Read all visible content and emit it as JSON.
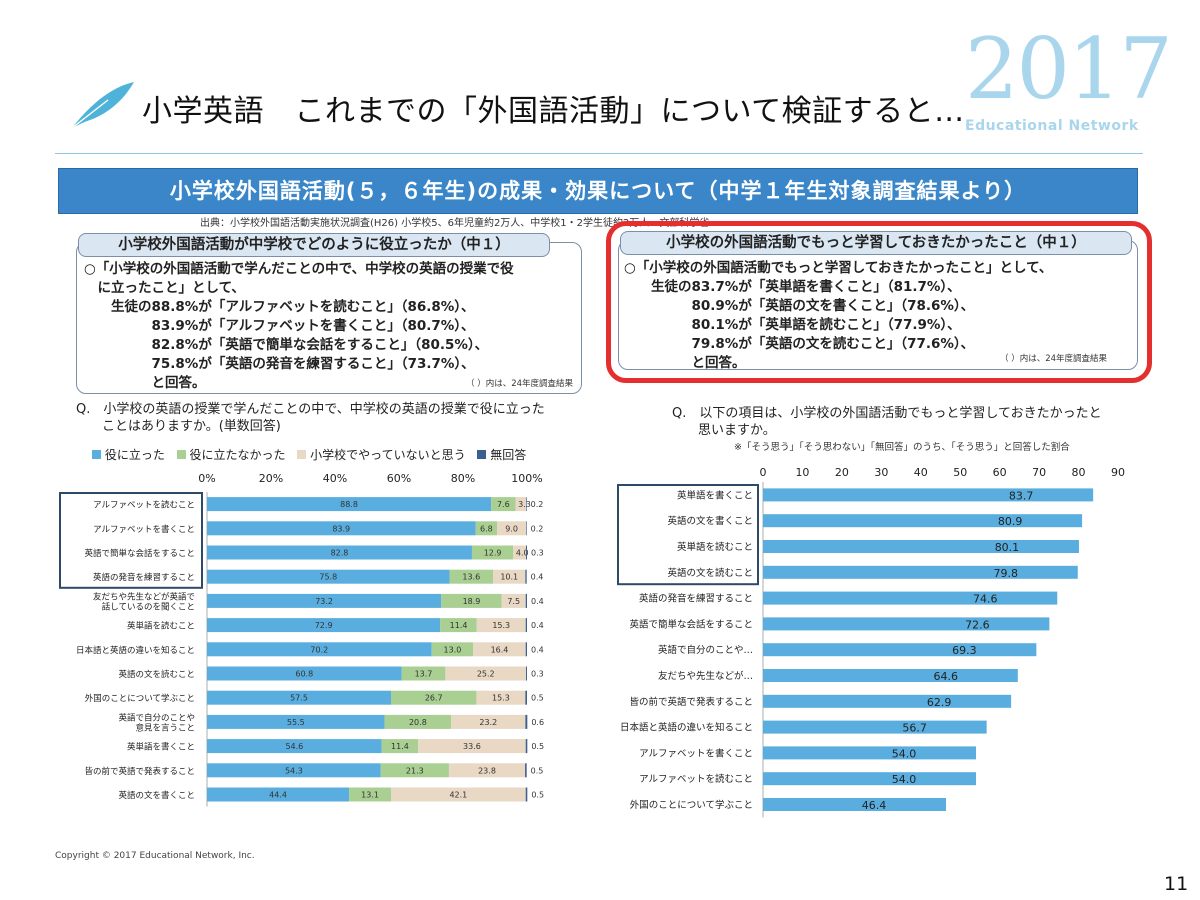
{
  "header": {
    "title": "小学英語　これまでの「外国語活動」について検証すると…",
    "year": "2017",
    "brand": "Educational Network"
  },
  "panel": {
    "banner": "小学校外国語活動(５，６年生)の成果・効果について（中学１年生対象調査結果より）",
    "source": "出典：小学校外国語活動実施状況調査(H26) 小学校5、6年児童約2万人、中学校1・2学生徒約2万人…文部科学省…"
  },
  "left_box": {
    "heading": "小学校外国語活動が中学校でどのように役立ったか（中１）",
    "lines": [
      "○「小学校の外国語活動で学んだことの中で、中学校の英語の授業で役",
      "　に立ったこと」として、",
      "　　生徒の88.8%が「アルファベットを読むこと」（86.8%）、",
      "　　　　　83.9%が「アルファベットを書くこと」（80.7%）、",
      "　　　　　82.8%が「英語で簡単な会話をすること」（80.5%）、",
      "　　　　　75.8%が「英語の発音を練習すること」（73.7%）、",
      "　　　　　と回答。"
    ],
    "note": "（ ）内は、24年度調査結果"
  },
  "right_box": {
    "heading": "小学校の外国語活動でもっと学習しておきたかったこと（中１）",
    "lines": [
      "○「小学校の外国語活動でもっと学習しておきたかったこと」として、",
      "　　生徒の83.7%が「英単語を書くこと」（81.7%）、",
      "　　　　　80.9%が「英語の文を書くこと」（78.6%）、",
      "　　　　　80.1%が「英単語を読むこと」（77.9%）、",
      "　　　　　79.8%が「英語の文を読むこと」（77.6%）、",
      "　　　　　と回答。"
    ],
    "note": "（ ）内は、24年度調査結果"
  },
  "left_question": "Q.　小学校の英語の授業で学んだことの中で、中学校の英語の授業で役に立った\n　　ことはありますか。(単数回答)",
  "right_question": "Q.　以下の項目は、小学校の外国語活動でもっと学習しておきたかったと\n　　思いますか。",
  "right_subnote": "※「そう思う」「そう思わない」「無回答」のうち、「そう思う」と回答した割合",
  "legend": {
    "s1": "役に立った",
    "s2": "役に立たなかった",
    "s3": "小学校でやっていないと思う",
    "s4": "無回答"
  },
  "footer": {
    "copyright": "Copyright ©  2017  Educational Network, Inc.",
    "page": "11"
  },
  "colors": {
    "blue": "#5aaedf",
    "green": "#a9cf93",
    "beige": "#e8d8c4",
    "navy": "#3b5f8e",
    "red": "#e52e2e"
  },
  "chart_data": [
    {
      "type": "bar",
      "orientation": "horizontal",
      "stacked": true,
      "xlim": [
        0,
        100
      ],
      "tick_labels": [
        "0%",
        "20%",
        "40%",
        "60%",
        "80%",
        "100%"
      ],
      "categories": [
        "アルファベットを読むこと",
        "アルファベットを書くこと",
        "英語で簡単な会話をすること",
        "英語の発音を練習すること",
        "友だちや先生などが英語で\n話しているのを聞くこと",
        "英単語を読むこと",
        "日本語と英語の違いを知ること",
        "英語の文を読むこと",
        "外国のことについて学ぶこと",
        "英語で自分のことや\n意見を言うこと",
        "英単語を書くこと",
        "皆の前で英語で発表すること",
        "英語の文を書くこと"
      ],
      "series": [
        {
          "name": "役に立った",
          "values": [
            88.8,
            83.9,
            82.8,
            75.8,
            73.2,
            72.9,
            70.2,
            60.8,
            57.5,
            55.5,
            54.6,
            54.3,
            44.4
          ]
        },
        {
          "name": "役に立たなかった",
          "values": [
            7.6,
            6.8,
            12.9,
            13.6,
            18.9,
            11.4,
            13.0,
            13.7,
            26.7,
            20.8,
            11.4,
            21.3,
            13.1
          ]
        },
        {
          "name": "小学校でやっていないと思う",
          "values": [
            3.3,
            9.0,
            4.0,
            10.1,
            7.5,
            15.3,
            16.4,
            25.2,
            15.3,
            23.2,
            33.6,
            23.8,
            42.1
          ]
        },
        {
          "name": "無回答",
          "values": [
            0.2,
            0.2,
            0.3,
            0.4,
            0.4,
            0.4,
            0.4,
            0.3,
            0.5,
            0.6,
            0.5,
            0.5,
            0.5
          ]
        }
      ],
      "value_labels": [
        [
          "88.8",
          "7.6",
          "3.3",
          "0.2"
        ],
        [
          "83.9",
          "6.8",
          "9.0",
          "0.2"
        ],
        [
          "82.8",
          "12.9",
          "4.0",
          "0.3"
        ],
        [
          "75.8",
          "13.6",
          "10.1",
          "0.4"
        ],
        [
          "73.2",
          "18.9",
          "7.5",
          "0.4"
        ],
        [
          "72.9",
          "11.4",
          "15.3",
          "0.4"
        ],
        [
          "70.2",
          "13.0",
          "16.4",
          "0.4"
        ],
        [
          "60.8",
          "13.7",
          "25.2",
          "0.3"
        ],
        [
          "57.5",
          "26.7",
          "15.3",
          "0.5"
        ],
        [
          "55.5",
          "20.8",
          "23.2",
          "0.6"
        ],
        [
          "54.6",
          "11.4",
          "33.6",
          "0.5"
        ],
        [
          "54.3",
          "21.3",
          "23.8",
          "0.5"
        ],
        [
          "44.4",
          "13.1",
          "42.1",
          "0.5"
        ]
      ]
    },
    {
      "type": "bar",
      "orientation": "horizontal",
      "xlim": [
        0,
        90
      ],
      "ticks": [
        0,
        10,
        20,
        30,
        40,
        50,
        60,
        70,
        80,
        90
      ],
      "categories": [
        "英単語を書くこと",
        "英語の文を書くこと",
        "英単語を読むこと",
        "英語の文を読むこと",
        "英語の発音を練習すること",
        "英語で簡単な会話をすること",
        "英語で自分のことや…",
        "友だちや先生などが…",
        "皆の前で英語で発表すること",
        "日本語と英語の違いを知ること",
        "アルファベットを書くこと",
        "アルファベットを読むこと",
        "外国のことについて学ぶこと"
      ],
      "values": [
        83.7,
        80.9,
        80.1,
        79.8,
        74.6,
        72.6,
        69.3,
        64.6,
        62.9,
        56.7,
        54.0,
        54.0,
        46.4
      ],
      "value_labels": [
        "83.7",
        "80.9",
        "80.1",
        "79.8",
        "74.6",
        "72.6",
        "69.3",
        "64.6",
        "62.9",
        "56.7",
        "54.0",
        "54.0",
        "46.4"
      ]
    }
  ]
}
